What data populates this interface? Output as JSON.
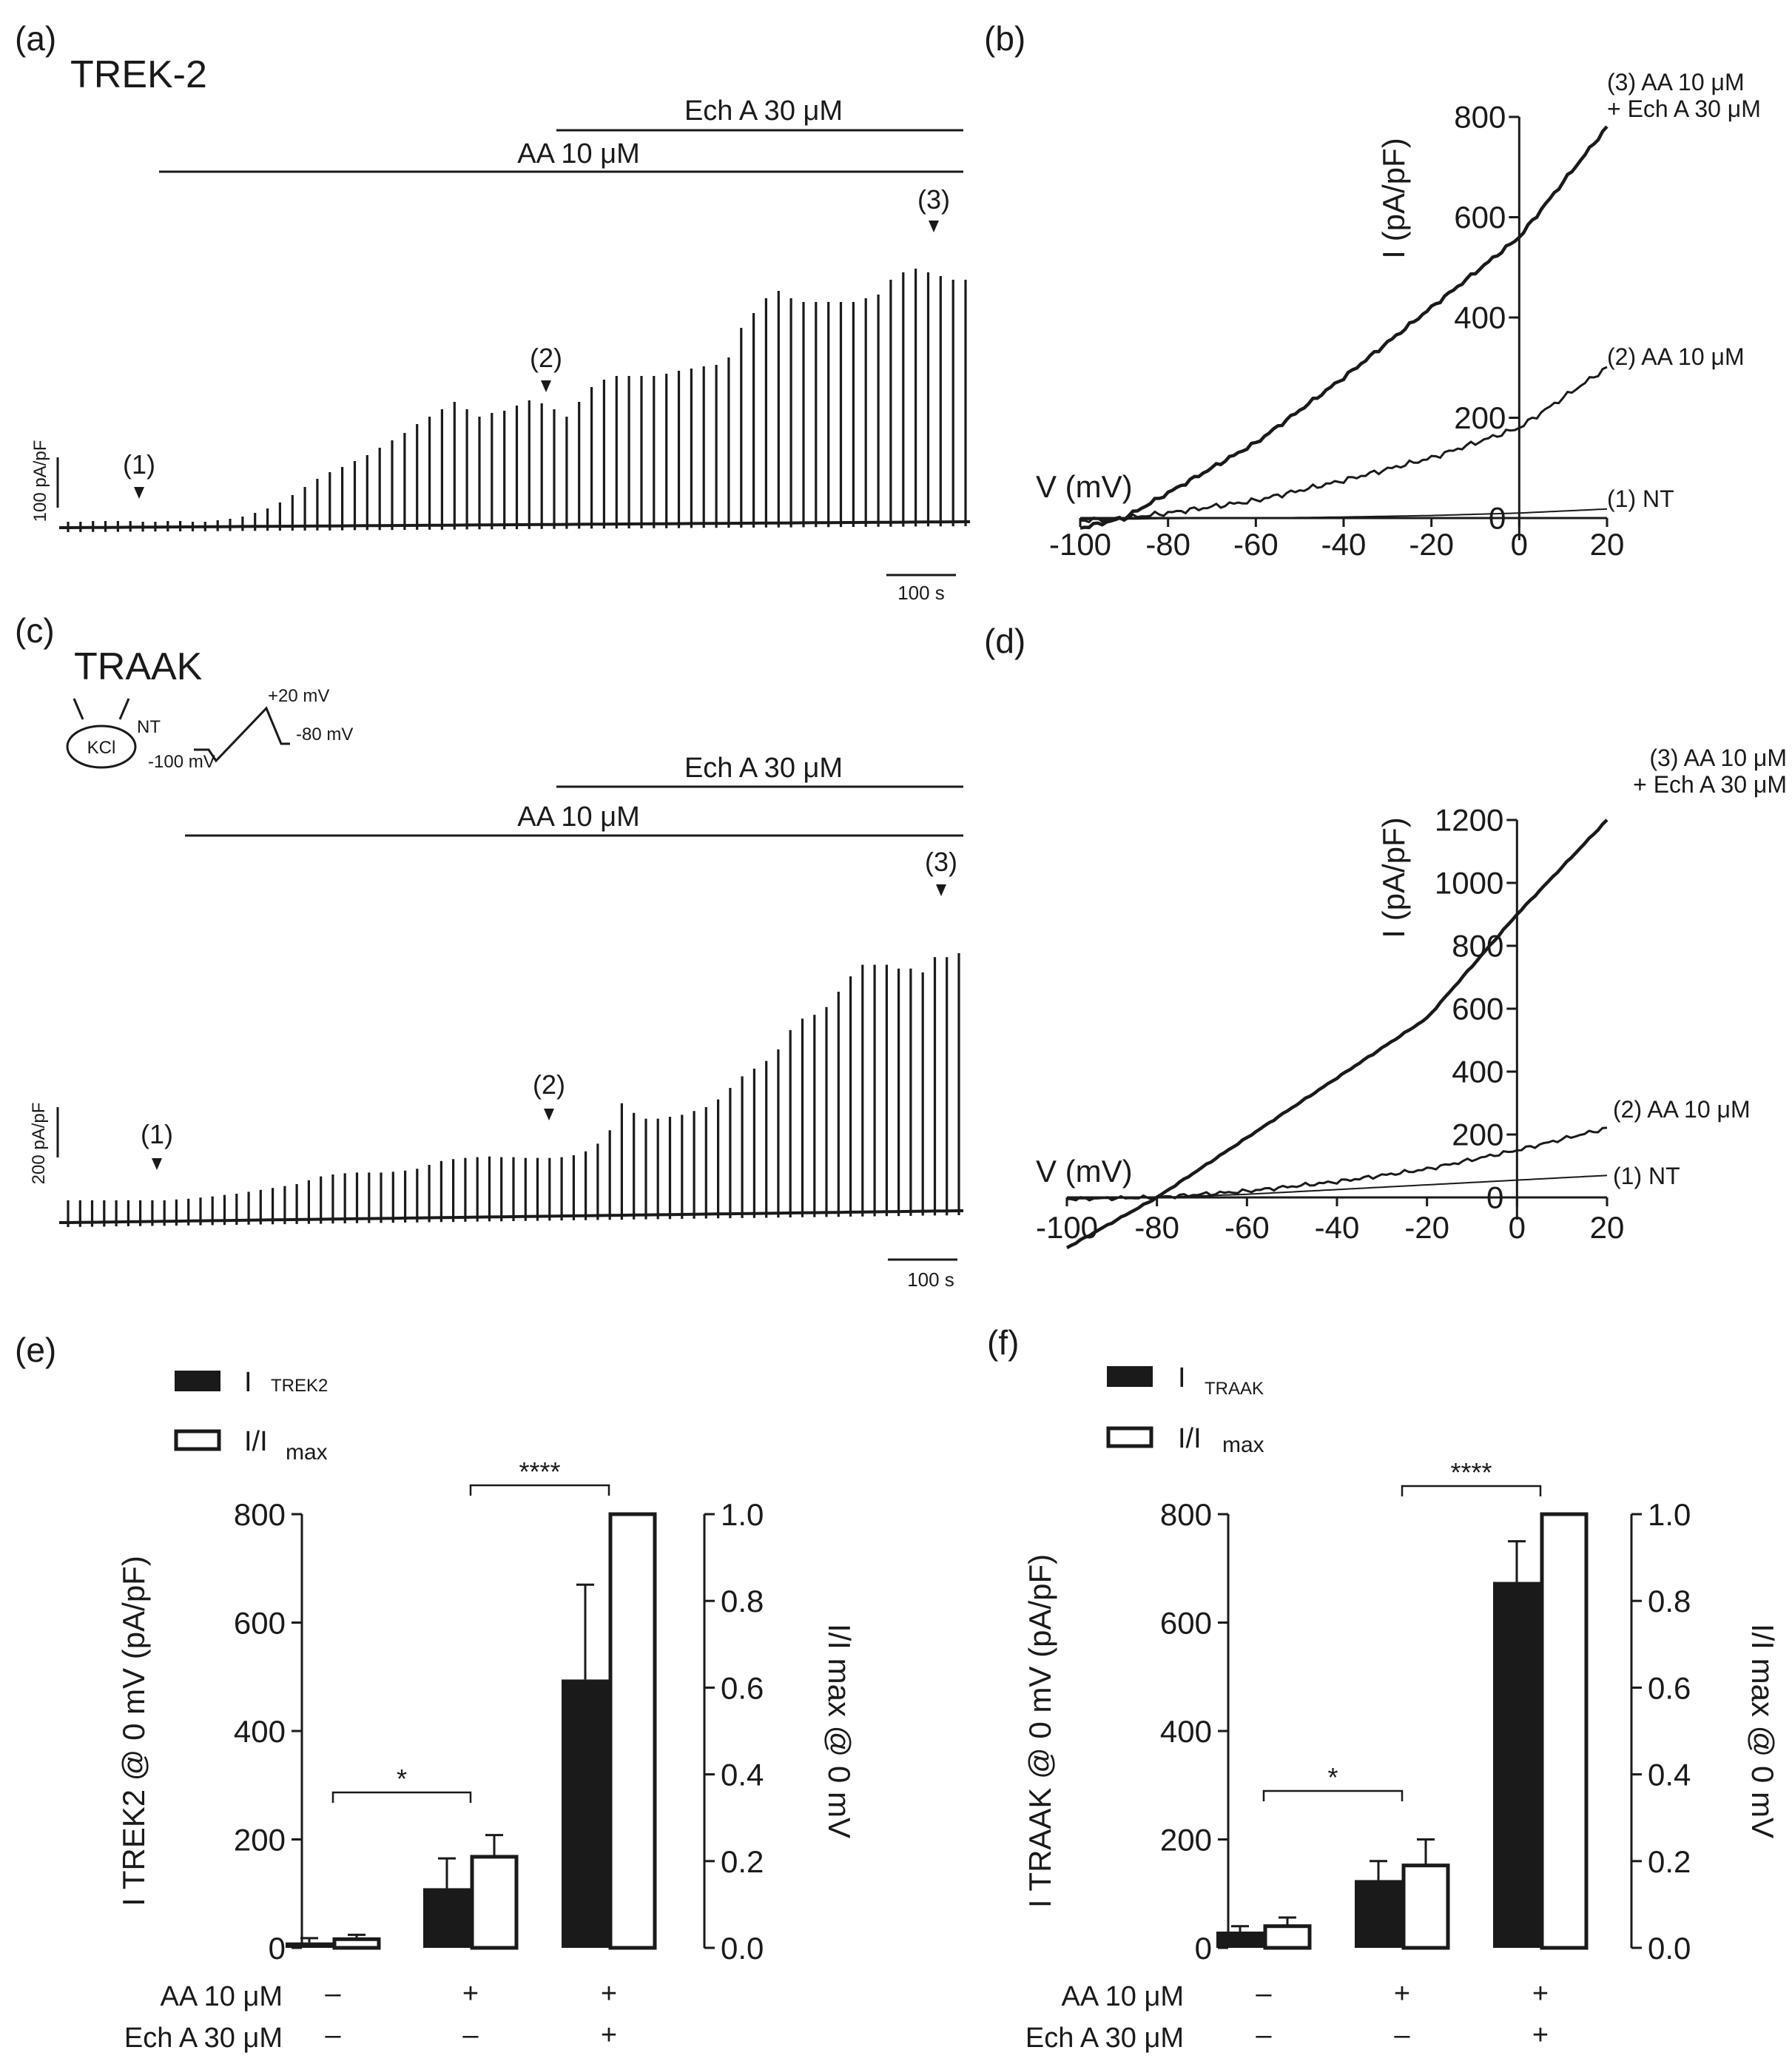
{
  "panels": {
    "a": {
      "letter": "(a)",
      "name": "TREK-2",
      "drug_bottom": "AA 10 μM",
      "drug_top": "Ech A 30 μM",
      "marker1": "(1)",
      "marker2": "(2)",
      "marker3": "(3)",
      "scale_y": "100 pA/pF",
      "scale_x": "100 s"
    },
    "b": {
      "letter": "(b)"
    },
    "c": {
      "letter": "(c)",
      "name": "TRAAK",
      "drug_bottom": "AA 10 μM",
      "drug_top": "Ech A 30 μM",
      "marker1": "(1)",
      "marker2": "(2)",
      "marker3": "(3)",
      "scale_y": "200 pA/pF",
      "scale_x": "100 s",
      "inset": {
        "kcl": "KCl",
        "nt": "NT",
        "v_start": "-100 mV",
        "v_peak": "+20 mV",
        "v_hold": "-80 mV"
      }
    },
    "d": {
      "letter": "(d)"
    },
    "e": {
      "letter": "(e)",
      "legend1_main": "I",
      "legend1_sub": "TREK2",
      "legend2_main": "I/I",
      "legend2_sub": "max"
    },
    "f": {
      "letter": "(f)",
      "legend1_main": "I",
      "legend1_sub": "TRAAK",
      "legend2_main": "I/I",
      "legend2_sub": "max"
    }
  },
  "chart_data": [
    {
      "id": "a",
      "type": "line",
      "title": "TREK-2",
      "description_values": "peak current (pA/pF) of each ramp sweep over time",
      "sweeps": [
        8,
        8,
        9,
        9,
        9,
        9,
        8,
        8,
        9,
        9,
        8,
        8,
        10,
        12,
        15,
        20,
        26,
        34,
        44,
        55,
        66,
        75,
        82,
        90,
        98,
        108,
        118,
        128,
        140,
        150,
        160,
        170,
        160,
        150,
        155,
        158,
        165,
        172,
        168,
        160,
        150,
        170,
        190,
        200,
        205,
        205,
        205,
        205,
        208,
        212,
        215,
        218,
        220,
        230,
        270,
        290,
        310,
        320,
        310,
        305,
        305,
        305,
        305,
        305,
        310,
        315,
        335,
        345,
        350,
        345,
        340,
        335,
        335
      ],
      "annotations": [
        "(1)",
        "(2)",
        "(3)"
      ],
      "drugs": [
        "AA 10 μM",
        "Ech A 30 μM"
      ]
    },
    {
      "id": "b",
      "type": "line",
      "xlabel": "V (mV)",
      "ylabel": "I (pA/pF)",
      "xlim": [
        -100,
        20
      ],
      "ylim": [
        0,
        800
      ],
      "xticks": [
        -100,
        -80,
        -60,
        -40,
        -20,
        0,
        20
      ],
      "yticks": [
        0,
        200,
        400,
        600,
        800
      ],
      "series": [
        {
          "name": "(1) NT",
          "x": [
            -100,
            -80,
            -60,
            -40,
            -20,
            0,
            20
          ],
          "y": [
            -3,
            -1,
            0,
            2,
            5,
            10,
            18
          ]
        },
        {
          "name": "(2) AA 10 μM",
          "x": [
            -100,
            -90,
            -80,
            -60,
            -40,
            -20,
            0,
            20
          ],
          "y": [
            -5,
            0,
            10,
            35,
            75,
            120,
            180,
            300
          ]
        },
        {
          "name": "(3) AA 10 μM + Ech A 30 μM",
          "x": [
            -100,
            -90,
            -80,
            -60,
            -40,
            -20,
            0,
            20
          ],
          "y": [
            -20,
            0,
            50,
            150,
            280,
            420,
            560,
            780
          ]
        }
      ]
    },
    {
      "id": "c",
      "type": "line",
      "title": "TRAAK",
      "description_values": "peak current (pA/pF) of each ramp sweep over time",
      "sweeps": [
        58,
        58,
        58,
        58,
        58,
        58,
        58,
        58,
        58,
        60,
        62,
        65,
        68,
        72,
        75,
        80,
        85,
        90,
        95,
        100,
        110,
        120,
        125,
        128,
        130,
        130,
        130,
        132,
        135,
        140,
        150,
        160,
        165,
        168,
        170,
        172,
        170,
        170,
        168,
        168,
        168,
        170,
        175,
        185,
        205,
        240,
        310,
        285,
        270,
        270,
        275,
        280,
        290,
        300,
        320,
        350,
        380,
        400,
        420,
        450,
        500,
        530,
        540,
        560,
        600,
        640,
        670,
        670,
        670,
        660,
        660,
        650,
        690,
        690,
        700
      ],
      "annotations": [
        "(1)",
        "(2)",
        "(3)"
      ],
      "drugs": [
        "AA 10 μM",
        "Ech A 30 μM"
      ]
    },
    {
      "id": "d",
      "type": "line",
      "xlabel": "V (mV)",
      "ylabel": "I (pA/pF)",
      "xlim": [
        -100,
        20
      ],
      "ylim": [
        0,
        1200
      ],
      "xticks": [
        -100,
        -80,
        -60,
        -40,
        -20,
        0,
        20
      ],
      "yticks": [
        0,
        200,
        400,
        600,
        800,
        1000,
        1200
      ],
      "series": [
        {
          "name": "(1) NT",
          "x": [
            -100,
            -80,
            -60,
            -40,
            -20,
            0,
            20
          ],
          "y": [
            -5,
            0,
            10,
            25,
            40,
            55,
            70
          ]
        },
        {
          "name": "(2) AA 10 μM",
          "x": [
            -100,
            -80,
            -60,
            -40,
            -20,
            0,
            20
          ],
          "y": [
            -5,
            0,
            20,
            50,
            90,
            150,
            220
          ]
        },
        {
          "name": "(3) AA 10 μM + Ech A 30 μM",
          "x": [
            -100,
            -90,
            -80,
            -60,
            -40,
            -20,
            0,
            20
          ],
          "y": [
            -160,
            -80,
            0,
            190,
            380,
            570,
            900,
            1200
          ]
        }
      ]
    },
    {
      "id": "e",
      "type": "bar",
      "categories": [
        "AA-/Ech-",
        "AA+/Ech-",
        "AA+/Ech+"
      ],
      "treatment_rows": [
        {
          "label": "AA 10 μM",
          "signs": [
            "–",
            "+",
            "+"
          ]
        },
        {
          "label": "Ech A 30 μM",
          "signs": [
            "–",
            "–",
            "+"
          ]
        }
      ],
      "ylabel_left": "I TREK2 @ 0 mV (pA/pF)",
      "ylabel_right": "I/I max @ 0 mV",
      "ylim_left": [
        0,
        800
      ],
      "ylim_right": [
        0,
        1.0
      ],
      "yticks_left": [
        0,
        200,
        400,
        600,
        800
      ],
      "yticks_right": [
        "0.0",
        "0.2",
        "0.4",
        "0.6",
        "0.8",
        "1.0"
      ],
      "series": [
        {
          "name": "I TREK2",
          "axis": "left",
          "values": [
            10,
            110,
            495
          ],
          "errors": [
            8,
            55,
            175
          ]
        },
        {
          "name": "I/I max",
          "axis": "right",
          "values": [
            0.02,
            0.21,
            1.0
          ],
          "errors": [
            0.01,
            0.05,
            0.0
          ]
        }
      ],
      "significance": [
        {
          "from": 0,
          "to": 1,
          "label": "*"
        },
        {
          "from": 1,
          "to": 2,
          "label": "****"
        }
      ]
    },
    {
      "id": "f",
      "type": "bar",
      "categories": [
        "AA-/Ech-",
        "AA+/Ech-",
        "AA+/Ech+"
      ],
      "treatment_rows": [
        {
          "label": "AA 10 μM",
          "signs": [
            "–",
            "+",
            "+"
          ]
        },
        {
          "label": "Ech A 30 μM",
          "signs": [
            "–",
            "–",
            "+"
          ]
        }
      ],
      "ylabel_left": "I TRAAK @ 0 mV (pA/pF)",
      "ylabel_right": "I/I max @ 0 mV",
      "ylim_left": [
        0,
        800
      ],
      "ylim_right": [
        0,
        1.0
      ],
      "yticks_left": [
        0,
        200,
        400,
        600,
        800
      ],
      "yticks_right": [
        "0.0",
        "0.2",
        "0.4",
        "0.6",
        "0.8",
        "1.0"
      ],
      "series": [
        {
          "name": "I TRAAK",
          "axis": "left",
          "values": [
            30,
            125,
            675
          ],
          "errors": [
            10,
            35,
            75
          ]
        },
        {
          "name": "I/I max",
          "axis": "right",
          "values": [
            0.05,
            0.19,
            1.0
          ],
          "errors": [
            0.02,
            0.06,
            0.0
          ]
        }
      ],
      "significance": [
        {
          "from": 0,
          "to": 1,
          "label": "*"
        },
        {
          "from": 1,
          "to": 2,
          "label": "****"
        }
      ]
    }
  ]
}
